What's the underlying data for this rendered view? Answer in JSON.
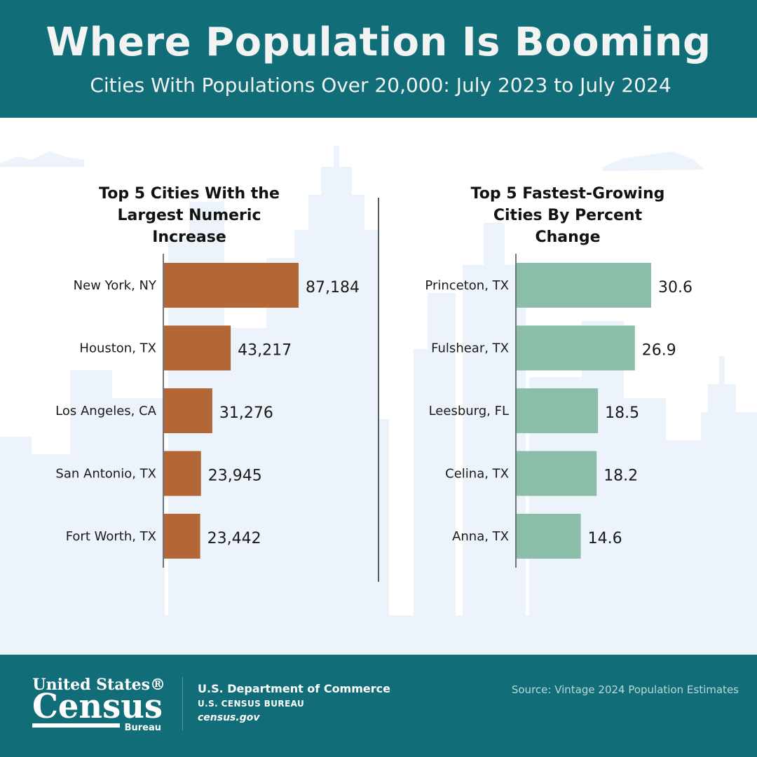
{
  "header": {
    "title": "Where Population Is Booming",
    "subtitle": "Cities With Populations Over 20,000: July 2023 to July 2024"
  },
  "chart_data": [
    {
      "type": "bar",
      "orientation": "horizontal",
      "title": "Top 5 Cities With the Largest Numeric Increase",
      "categories": [
        "New York, NY",
        "Houston, TX",
        "Los Angeles, CA",
        "San Antonio, TX",
        "Fort Worth, TX"
      ],
      "values": [
        87184,
        43217,
        31276,
        23945,
        23442
      ],
      "value_labels": [
        "87,184",
        "43,217",
        "31,276",
        "23,945",
        "23,442"
      ],
      "color": "#b36636"
    },
    {
      "type": "bar",
      "orientation": "horizontal",
      "title": "Top 5 Fastest-Growing Cities By Percent Change",
      "categories": [
        "Princeton, TX",
        "Fulshear, TX",
        "Leesburg, FL",
        "Celina, TX",
        "Anna, TX"
      ],
      "values": [
        30.6,
        26.9,
        18.5,
        18.2,
        14.6
      ],
      "value_labels": [
        "30.6",
        "26.9",
        "18.5",
        "18.2",
        "14.6"
      ],
      "color": "#8abea8"
    }
  ],
  "footer": {
    "logo": {
      "line1": "United States®",
      "line2": "Census",
      "line3": "Bureau"
    },
    "department": "U.S. Department of Commerce",
    "bureau": "U.S. CENSUS BUREAU",
    "website": "census.gov",
    "source": "Source: Vintage 2024 Population Estimates"
  },
  "colors": {
    "header_bg": "#116e78",
    "skyline": "#edf3fa",
    "numeric_bar": "#b36636",
    "percent_bar": "#8abea8",
    "axis": "#444a50"
  }
}
